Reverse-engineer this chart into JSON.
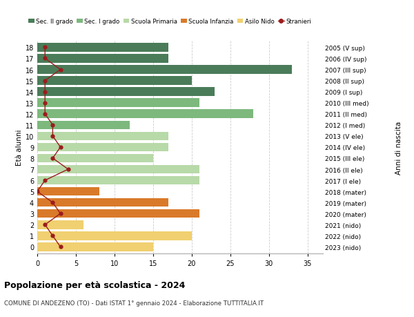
{
  "ages": [
    18,
    17,
    16,
    15,
    14,
    13,
    12,
    11,
    10,
    9,
    8,
    7,
    6,
    5,
    4,
    3,
    2,
    1,
    0
  ],
  "labels_right": [
    "2005 (V sup)",
    "2006 (IV sup)",
    "2007 (III sup)",
    "2008 (II sup)",
    "2009 (I sup)",
    "2010 (III med)",
    "2011 (II med)",
    "2012 (I med)",
    "2013 (V ele)",
    "2014 (IV ele)",
    "2015 (III ele)",
    "2016 (II ele)",
    "2017 (I ele)",
    "2018 (mater)",
    "2019 (mater)",
    "2020 (mater)",
    "2021 (nido)",
    "2022 (nido)",
    "2023 (nido)"
  ],
  "bar_values": [
    17,
    17,
    33,
    20,
    23,
    21,
    28,
    12,
    17,
    17,
    15,
    21,
    21,
    8,
    17,
    21,
    6,
    20,
    15
  ],
  "bar_colors": [
    "#4a7c59",
    "#4a7c59",
    "#4a7c59",
    "#4a7c59",
    "#4a7c59",
    "#7db87d",
    "#7db87d",
    "#7db87d",
    "#b8d9a8",
    "#b8d9a8",
    "#b8d9a8",
    "#b8d9a8",
    "#b8d9a8",
    "#d97a2a",
    "#d97a2a",
    "#d97a2a",
    "#f0d070",
    "#f0d070",
    "#f0d070"
  ],
  "stranieri_values": [
    1,
    1,
    3,
    1,
    1,
    1,
    1,
    2,
    2,
    3,
    2,
    4,
    1,
    0,
    2,
    3,
    1,
    2,
    3
  ],
  "title_bold": "Popolazione per età scolastica - 2024",
  "subtitle": "COMUNE DI ANDEZENO (TO) - Dati ISTAT 1° gennaio 2024 - Elaborazione TUTTITALIA.IT",
  "ylabel": "Età alunni",
  "ylabel2": "Anni di nascita",
  "xlabel": "",
  "xlim": [
    0,
    37
  ],
  "xticks": [
    0,
    5,
    10,
    15,
    20,
    25,
    30,
    35
  ],
  "legend_labels": [
    "Sec. II grado",
    "Sec. I grado",
    "Scuola Primaria",
    "Scuola Infanzia",
    "Asilo Nido",
    "Stranieri"
  ],
  "legend_colors": [
    "#4a7c59",
    "#7db87d",
    "#b8d9a8",
    "#d97a2a",
    "#f0d070",
    "#9b1c1c"
  ],
  "stranieri_line_color": "#9b1c1c",
  "background_color": "#ffffff",
  "grid_color": "#cccccc"
}
